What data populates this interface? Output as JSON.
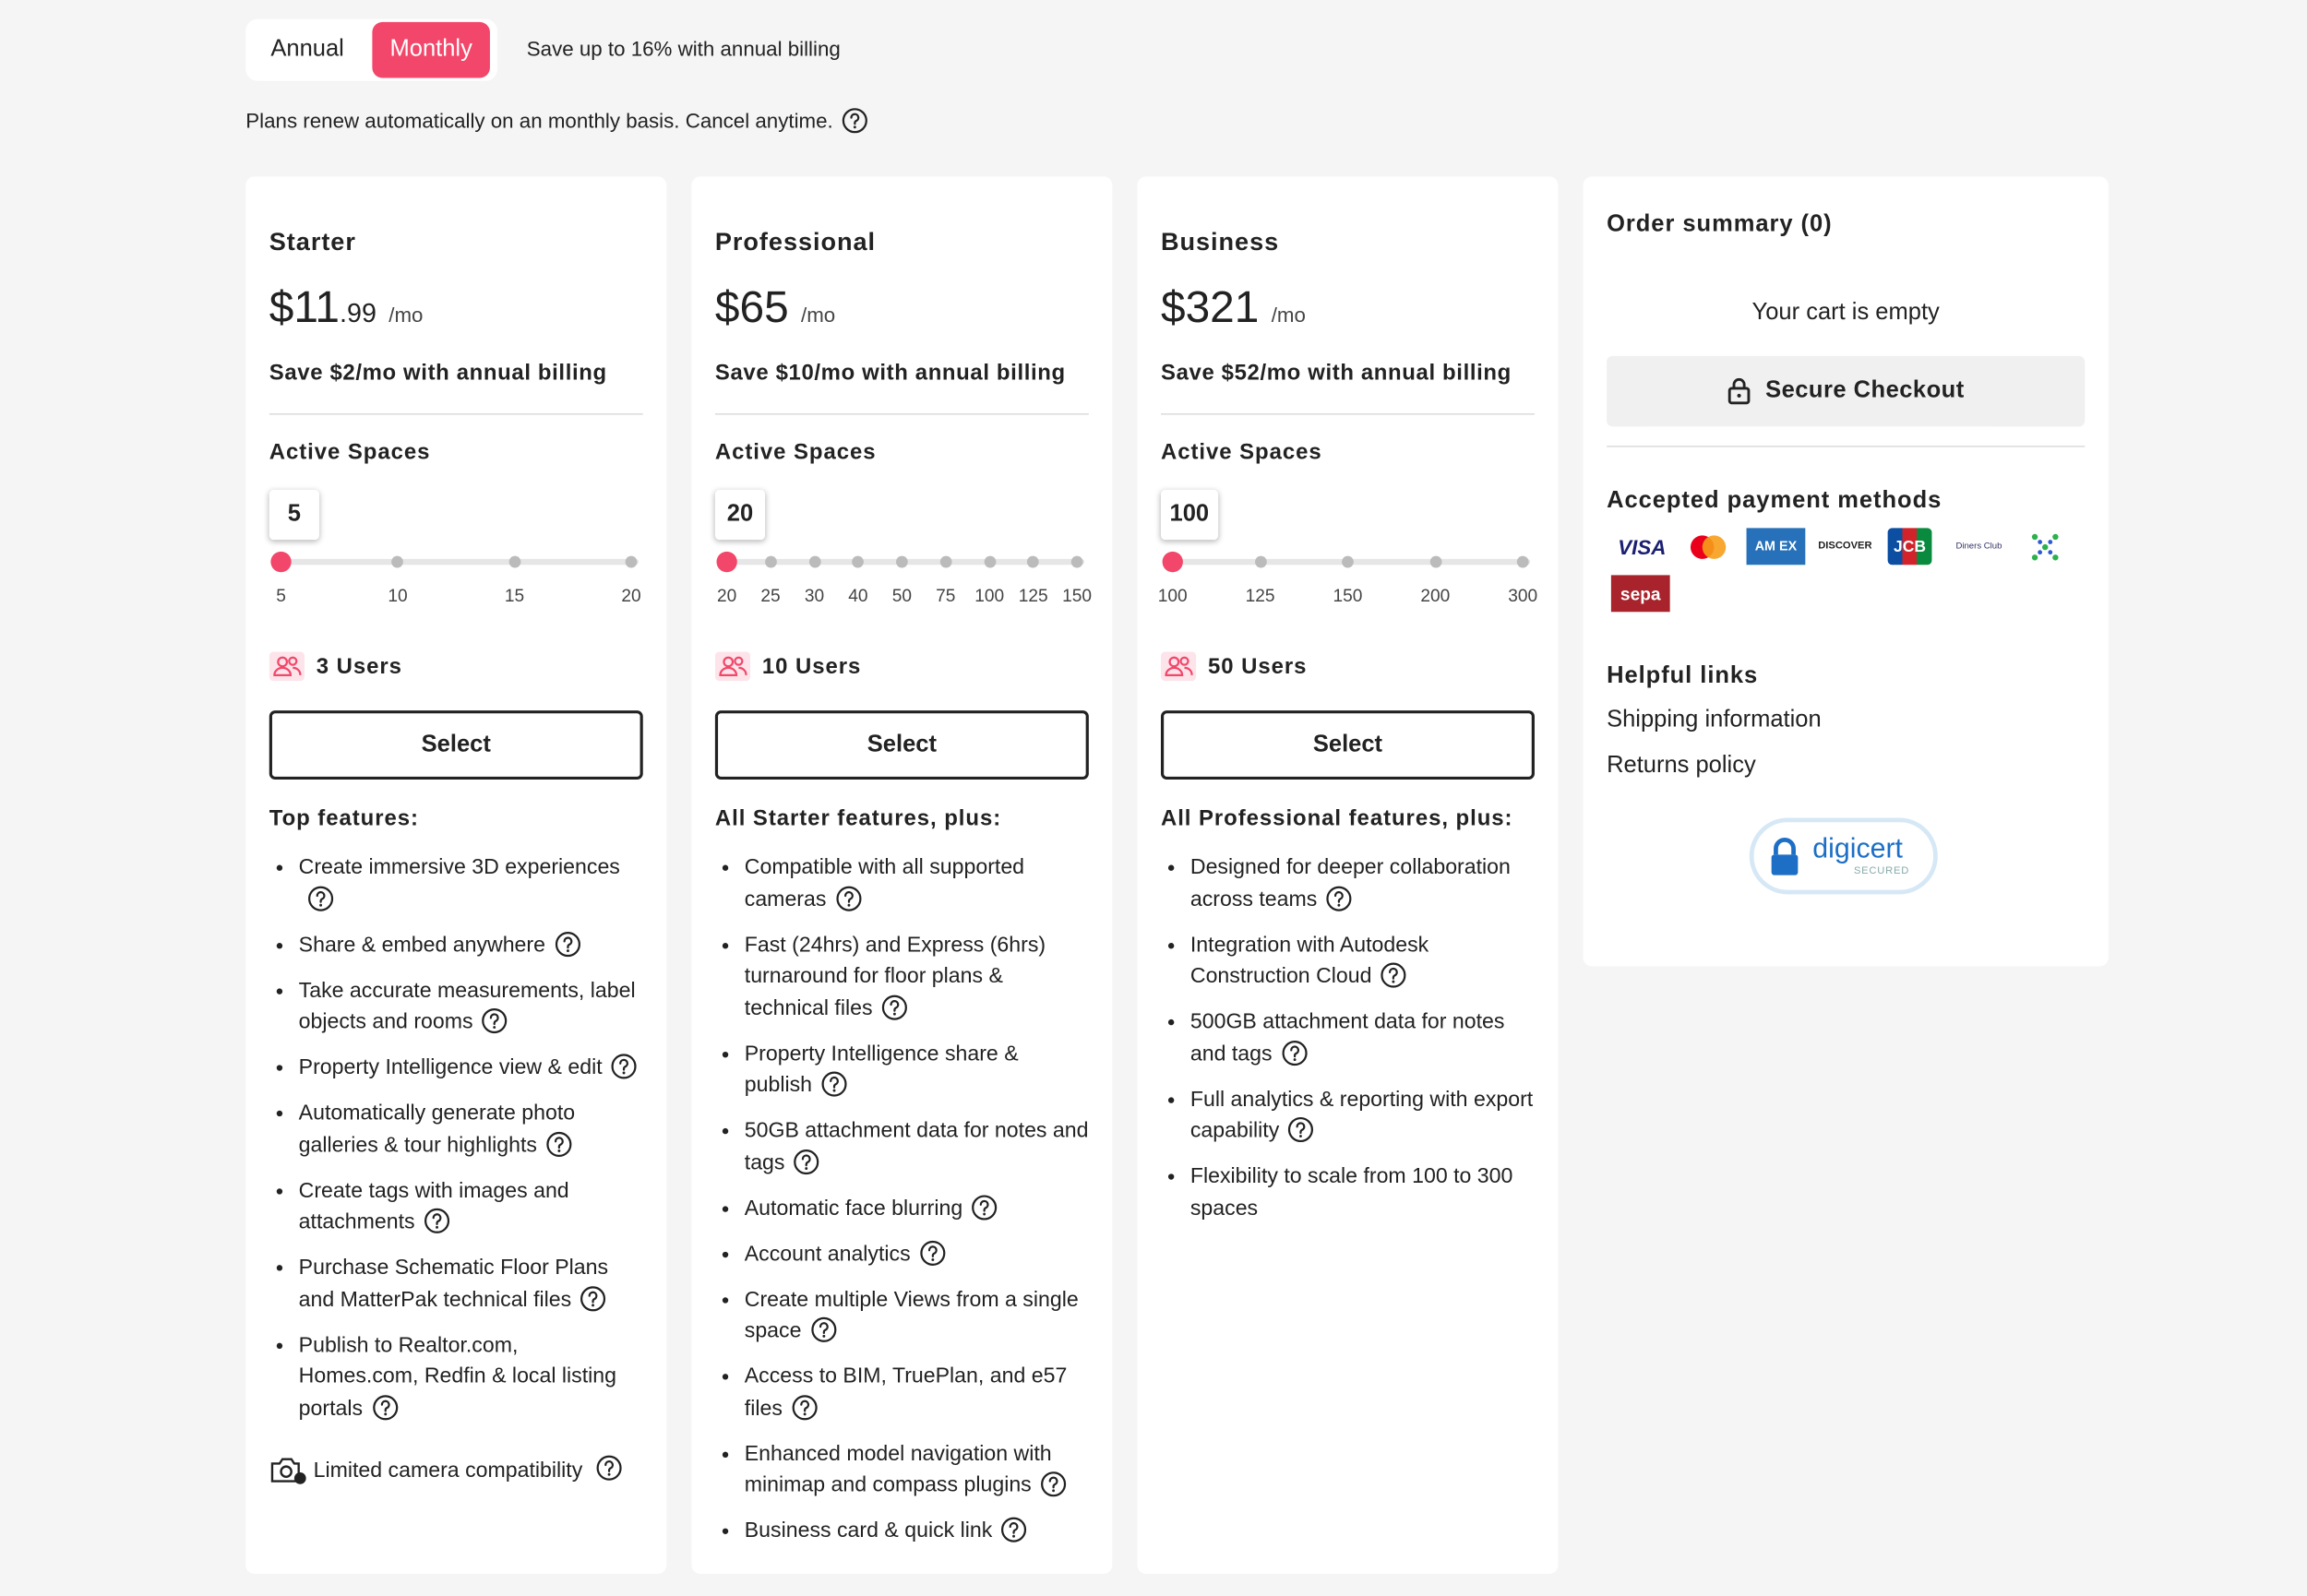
{
  "billing": {
    "options": [
      "Annual",
      "Monthly"
    ],
    "active": "Monthly",
    "note": "Save up to 16% with annual billing",
    "renew": "Plans renew automatically on an monthly basis. Cancel anytime."
  },
  "plans": [
    {
      "name": "Starter",
      "price": "$11",
      "cents": ".99",
      "period": "/mo",
      "save": "Save $2/mo with annual billing",
      "spaces_label": "Active Spaces",
      "selected": 5,
      "ticks": [
        5,
        10,
        15,
        20
      ],
      "users": "3 Users",
      "button": "Select",
      "features_title": "Top features:",
      "features": [
        {
          "text": "Create immersive 3D experiences",
          "help": true
        },
        {
          "text": "Share & embed anywhere",
          "help": true
        },
        {
          "text": "Take accurate measurements, label objects and rooms",
          "help": true
        },
        {
          "text": "Property Intelligence view & edit",
          "help": true
        },
        {
          "text": "Automatically generate photo galleries & tour highlights",
          "help": true
        },
        {
          "text": "Create tags with images and attachments",
          "help": true
        },
        {
          "text": "Purchase Schematic Floor Plans and MatterPak technical files",
          "help": true
        },
        {
          "text": "Publish to Realtor.com, Homes.com, Redfin & local listing portals",
          "help": true
        }
      ],
      "camera_note": "Limited camera compatibility"
    },
    {
      "name": "Professional",
      "price": "$65",
      "cents": "",
      "period": "/mo",
      "save": "Save $10/mo with annual billing",
      "spaces_label": "Active Spaces",
      "selected": 20,
      "ticks": [
        20,
        25,
        30,
        40,
        50,
        75,
        100,
        125,
        150
      ],
      "users": "10 Users",
      "button": "Select",
      "features_title": "All Starter features, plus:",
      "features": [
        {
          "text": "Compatible with all supported cameras",
          "help": true
        },
        {
          "text": "Fast (24hrs) and Express (6hrs) turnaround for floor plans & technical files",
          "help": true
        },
        {
          "text": "Property Intelligence share & publish",
          "help": true
        },
        {
          "text": "50GB attachment data for notes and tags",
          "help": true
        },
        {
          "text": "Automatic face blurring",
          "help": true
        },
        {
          "text": "Account analytics",
          "help": true
        },
        {
          "text": "Create multiple Views from a single space",
          "help": true
        },
        {
          "text": "Access to BIM, TruePlan, and e57 files",
          "help": true
        },
        {
          "text": "Enhanced model navigation with minimap and compass plugins",
          "help": true
        },
        {
          "text": "Business card & quick link",
          "help": true
        }
      ]
    },
    {
      "name": "Business",
      "price": "$321",
      "cents": "",
      "period": "/mo",
      "save": "Save $52/mo with annual billing",
      "spaces_label": "Active Spaces",
      "selected": 100,
      "ticks": [
        100,
        125,
        150,
        200,
        300
      ],
      "users": "50 Users",
      "button": "Select",
      "features_title": "All Professional features, plus:",
      "features": [
        {
          "text": "Designed for deeper collaboration across teams",
          "help": true
        },
        {
          "text": "Integration with Autodesk Construction Cloud",
          "help": true
        },
        {
          "text": "500GB attachment data for notes and tags",
          "help": true
        },
        {
          "text": "Full analytics & reporting with export capability",
          "help": true
        },
        {
          "text": "Flexibility to scale from 100 to 300 spaces",
          "help": false
        }
      ]
    }
  ],
  "order": {
    "title": "Order summary (0)",
    "empty": "Your cart is empty",
    "checkout": "Secure Checkout",
    "payments_title": "Accepted payment methods",
    "payments": {
      "visa": "VISA",
      "amex": "AM EX",
      "discover": "DISCOVER",
      "jcb": "JCB",
      "diners": "Diners Club",
      "sepa": "sepa"
    },
    "links_title": "Helpful links",
    "links": [
      "Shipping information",
      "Returns policy"
    ],
    "badge": "digicert",
    "badge_sub": "SECURED"
  }
}
